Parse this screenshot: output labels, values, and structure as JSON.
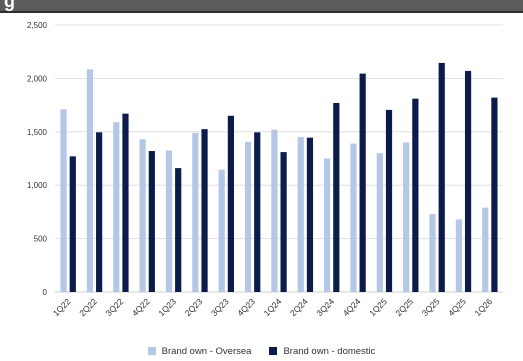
{
  "header": {
    "title": "g"
  },
  "colors": {
    "oversea": "#b4c7e7",
    "domestic": "#0d1b4b",
    "grid": "#d9d9d9",
    "header": "#5b5b5b"
  },
  "chart_data": {
    "type": "bar",
    "categories": [
      "1Q22",
      "2Q22",
      "3Q22",
      "4Q22",
      "1Q23",
      "2Q23",
      "3Q23",
      "4Q23",
      "1Q24",
      "2Q24",
      "3Q24",
      "4Q24",
      "1Q25",
      "2Q25",
      "3Q25",
      "4Q25",
      "1Q26"
    ],
    "series": [
      {
        "name": "Brand own - Oversea",
        "color": "#b4c7e7",
        "values": [
          1710,
          2085,
          1590,
          1430,
          1325,
          1490,
          1145,
          1405,
          1520,
          1450,
          1250,
          1390,
          1300,
          1400,
          730,
          680,
          790
        ]
      },
      {
        "name": "Brand own - domestic",
        "color": "#0d1b4b",
        "values": [
          1270,
          1495,
          1670,
          1320,
          1160,
          1525,
          1650,
          1495,
          1310,
          1445,
          1770,
          2045,
          1705,
          1810,
          2145,
          2070,
          1820
        ]
      }
    ],
    "y_ticks": [
      0,
      500,
      1000,
      1500,
      2000,
      2500
    ],
    "y_tick_labels": [
      "0",
      "500",
      "1,000",
      "1,500",
      "2,000",
      "2,500"
    ],
    "ylim": [
      0,
      2500
    ],
    "grid": true,
    "legend_position": "bottom"
  }
}
